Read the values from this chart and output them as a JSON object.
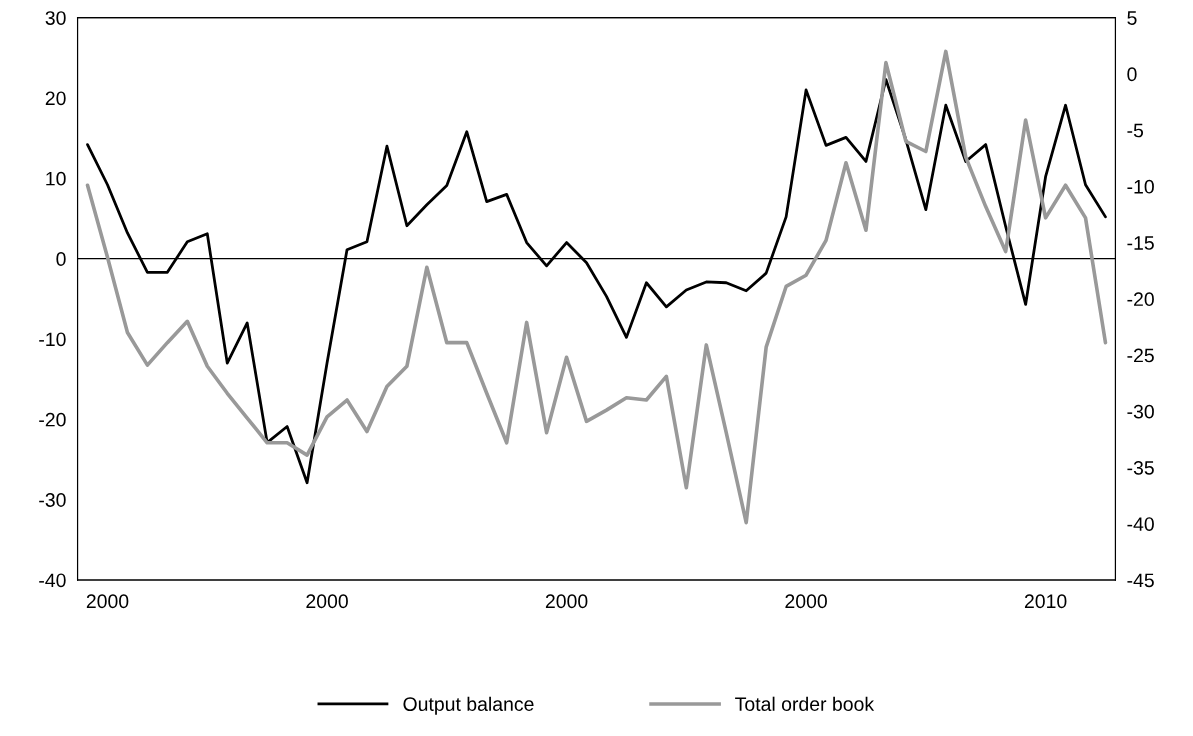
{
  "chart_data": {
    "type": "line",
    "categories": [
      null,
      "2000",
      null,
      null,
      null,
      null,
      null,
      null,
      null,
      null,
      null,
      null,
      "2000",
      null,
      null,
      null,
      null,
      null,
      null,
      null,
      null,
      null,
      null,
      null,
      "2000",
      null,
      null,
      null,
      null,
      null,
      null,
      null,
      null,
      null,
      null,
      null,
      "2000",
      null,
      null,
      null,
      null,
      null,
      null,
      null,
      null,
      null,
      null,
      null,
      "2010",
      null,
      null,
      null
    ],
    "series": [
      {
        "name": "Output balance",
        "color": "#000000",
        "values": [
          14.2,
          9.2,
          3.2,
          -1.7,
          -1.7,
          2.1,
          3.1,
          -13,
          -8,
          -22.9,
          -20.9,
          -27.9,
          -13,
          1.1,
          2.1,
          14,
          4.1,
          6.7,
          9.1,
          15.8,
          7.1,
          8,
          2,
          -0.9,
          2,
          -0.5,
          -4.7,
          -9.8,
          -3,
          -6,
          -3.9,
          -2.9,
          -3,
          -4,
          -1.8,
          5.2,
          21,
          14.1,
          15.1,
          12.1,
          22.3,
          14.8,
          6.1,
          19.1,
          12.1,
          14.2,
          4,
          -5.7,
          10.2,
          19.1,
          9.2,
          5.2
        ]
      },
      {
        "name": "Total order book",
        "color": "#999999",
        "axis": "y2",
        "values": [
          -9.9,
          -16.3,
          -23,
          -25.9,
          -23.9,
          -22,
          -26,
          -28.4,
          -30.6,
          -32.8,
          -32.8,
          -33.9,
          -30.5,
          -29,
          -31.8,
          -27.8,
          -26,
          -17.2,
          -23.9,
          -23.9,
          -28.4,
          -32.8,
          -22.1,
          -31.9,
          -25.2,
          -30.9,
          -29.9,
          -28.8,
          -29,
          -26.9,
          -36.8,
          -24.1,
          -31.9,
          -39.9,
          -24.3,
          -18.9,
          -17.9,
          -14.8,
          -7.9,
          -13.9,
          1,
          -6,
          -6.9,
          2,
          -7.4,
          -11.8,
          -15.8,
          -4.1,
          -12.8,
          -9.9,
          -12.8,
          -23.9
        ]
      }
    ],
    "ylim": [
      -40,
      30
    ],
    "yticks": [
      -40,
      -30,
      -20,
      -10,
      0,
      10,
      20,
      30
    ],
    "y2lim": [
      -45,
      5
    ],
    "y2ticks": [
      -45,
      -40,
      -35,
      -30,
      -25,
      -20,
      -15,
      -10,
      -5,
      0,
      5
    ],
    "ref_lines": [
      {
        "axis": "y",
        "value": 0,
        "color": "#000000"
      }
    ],
    "grid": false,
    "legend": "bottom",
    "line_style": "solid"
  }
}
